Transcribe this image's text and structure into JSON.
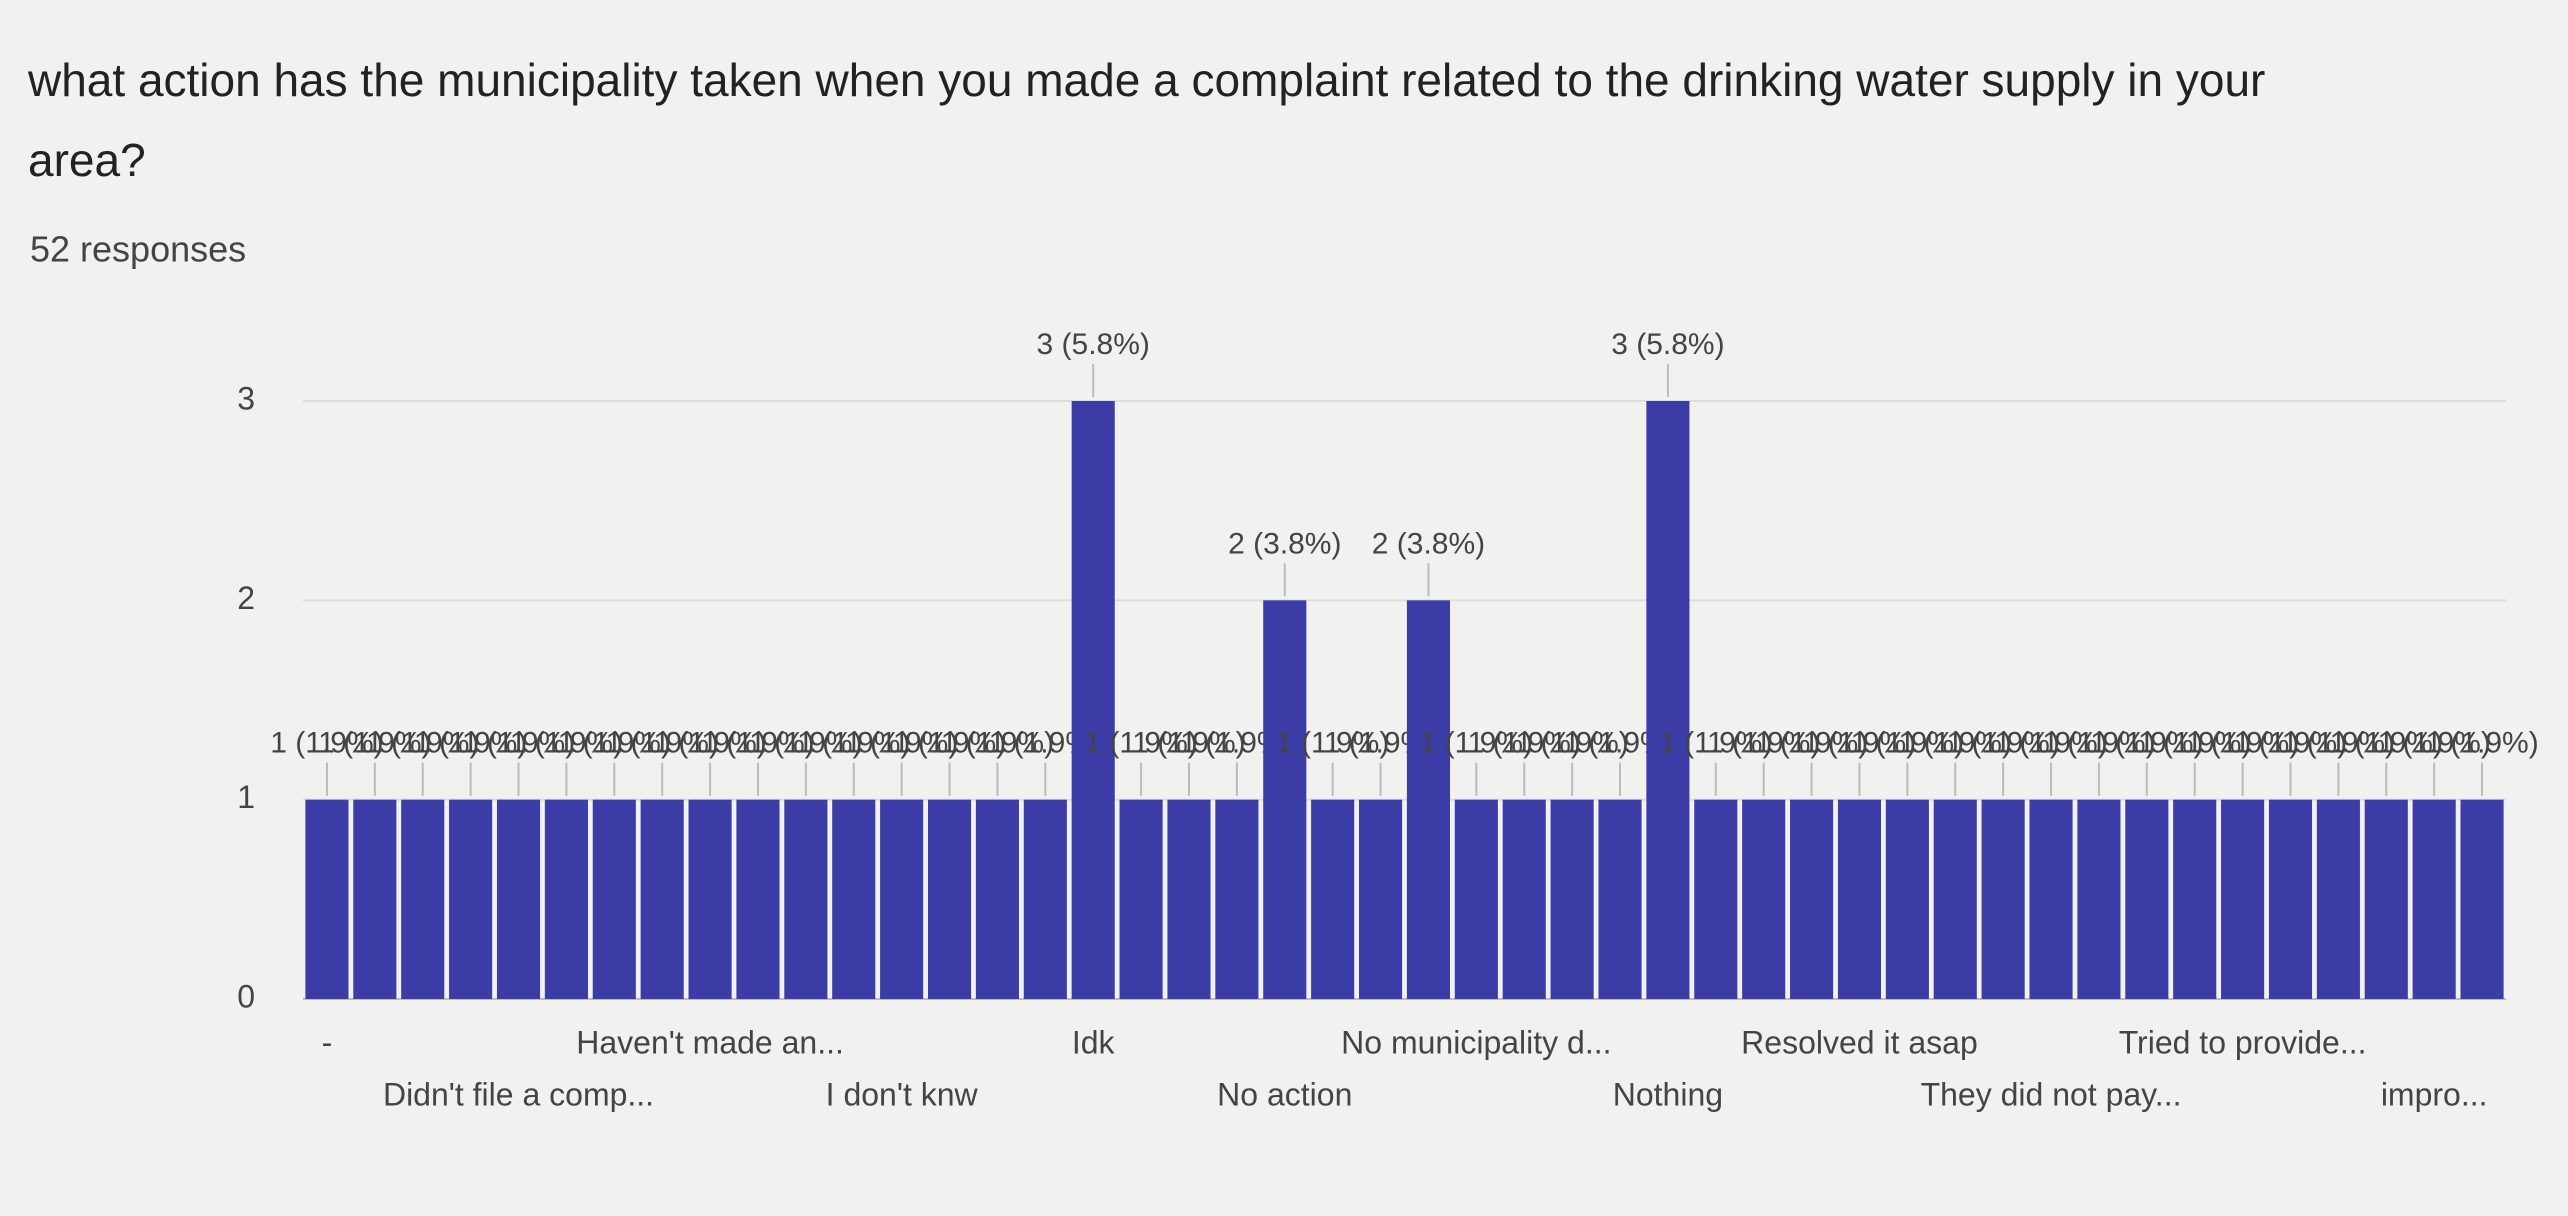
{
  "chart_data": {
    "type": "bar",
    "title": "what action has the municipality taken when you made a complaint related to the drinking water supply in your area?",
    "subtitle": "52 responses",
    "categories": [
      "-",
      null,
      null,
      null,
      "Didn't file a comp...",
      null,
      null,
      null,
      "Haven't made an...",
      null,
      null,
      null,
      "I don't knw",
      null,
      null,
      null,
      "Idk",
      null,
      null,
      null,
      "No action",
      null,
      null,
      null,
      "No municipality d...",
      null,
      null,
      null,
      "Nothing",
      null,
      null,
      null,
      "Resolved it asap",
      null,
      null,
      null,
      "They did not pay...",
      null,
      null,
      null,
      "Tried to provide...",
      null,
      null,
      null,
      "impro...",
      null
    ],
    "values": [
      1,
      1,
      1,
      1,
      1,
      1,
      1,
      1,
      1,
      1,
      1,
      1,
      1,
      1,
      1,
      1,
      3,
      1,
      1,
      1,
      2,
      1,
      1,
      2,
      1,
      1,
      1,
      1,
      3,
      1,
      1,
      1,
      1,
      1,
      1,
      1,
      1,
      1,
      1,
      1,
      1,
      1,
      1,
      1,
      1,
      1
    ],
    "value_labels": [
      "1 (1.9%)",
      "1 (1.9%)",
      "1 (1.9%)",
      "1 (1.9%)",
      "1 (1.9%)",
      "1 (1.9%)",
      "1 (1.9%)",
      "1 (1.9%)",
      "1 (1.9%)",
      "1 (1.9%)",
      "1 (1.9%)",
      "1 (1.9%)",
      "1 (1.9%)",
      "1 (1.9%)",
      "1 (1.9%)",
      "1 (1.9%)",
      "3 (5.8%)",
      "1 (1.9%)",
      "1 (1.9%)",
      "1 (1.9%)",
      "2 (3.8%)",
      "1 (1.9%)",
      "1 (1.9%)",
      "2 (3.8%)",
      "1 (1.9%)",
      "1 (1.9%)",
      "1 (1.9%)",
      "1 (1.9%)",
      "3 (5.8%)",
      "1 (1.9%)",
      "1 (1.9%)",
      "1 (1.9%)",
      "1 (1.9%)",
      "1 (1.9%)",
      "1 (1.9%)",
      "1 (1.9%)",
      "1 (1.9%)",
      "1 (1.9%)",
      "1 (1.9%)",
      "1 (1.9%)",
      "1 (1.9%)",
      "1 (1.9%)",
      "1 (1.9%)",
      "1 (1.9%)",
      "1 (1.9%)",
      "1 (1.9%)"
    ],
    "color": "#3b3ca6",
    "ylim": [
      0,
      3
    ],
    "yticks": [
      0,
      1,
      2,
      3
    ],
    "grid": true
  }
}
